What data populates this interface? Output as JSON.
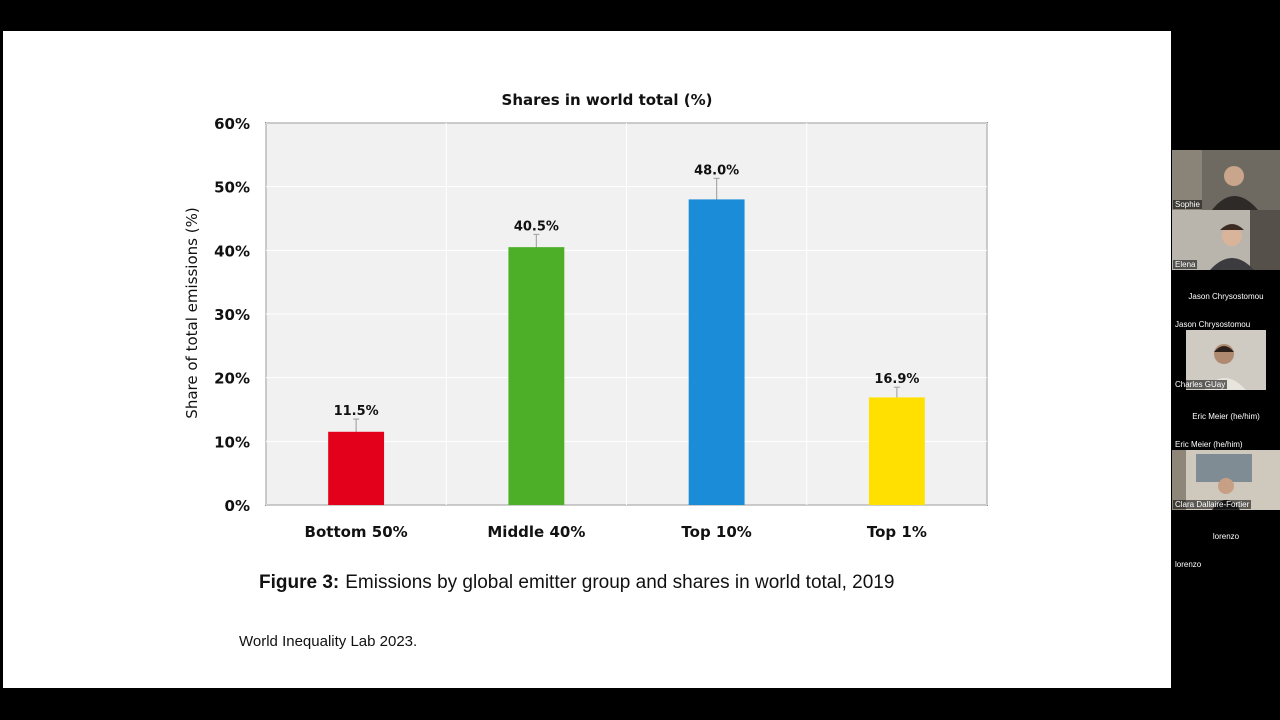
{
  "slide": {
    "caption_prefix": "Figure 3:",
    "caption_text": "Emissions by global emitter group and shares in world total, 2019",
    "source": "World Inequality Lab 2023."
  },
  "chart_data": {
    "type": "bar",
    "title": "Shares in world total (%)",
    "xlabel": "",
    "ylabel": "Share of total emissions (%)",
    "categories": [
      "Bottom 50%",
      "Middle 40%",
      "Top 10%",
      "Top 1%"
    ],
    "values": [
      11.5,
      40.5,
      48.0,
      16.9
    ],
    "data_labels": [
      "11.5%",
      "40.5%",
      "48.0%",
      "16.9%"
    ],
    "error_bars": [
      [
        9.5,
        13.5
      ],
      [
        39.0,
        42.5
      ],
      [
        44.8,
        51.3
      ],
      [
        15.0,
        18.5
      ]
    ],
    "colors": [
      "#e3001b",
      "#4caf27",
      "#1a8cd8",
      "#ffe000"
    ],
    "ylim": [
      0,
      60
    ],
    "yticks": [
      0,
      10,
      20,
      30,
      40,
      50,
      60
    ],
    "ytick_labels": [
      "0%",
      "10%",
      "20%",
      "30%",
      "40%",
      "50%",
      "60%"
    ],
    "grid": true,
    "legend": "none"
  },
  "participants": [
    {
      "name": "Sophie",
      "video": true
    },
    {
      "name": "Elena",
      "video": true
    },
    {
      "name": "Jason Chrysostomou",
      "video": false
    },
    {
      "name": "Charles GUay",
      "video": true
    },
    {
      "name": "Eric Meier (he/him)",
      "video": false
    },
    {
      "name": "Clara Dallaire-Fortier",
      "video": true
    },
    {
      "name": "lorenzo",
      "video": false
    }
  ]
}
